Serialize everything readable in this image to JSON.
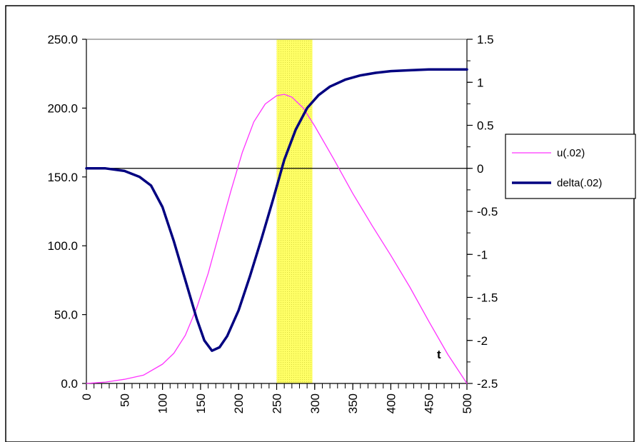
{
  "chart_data": {
    "type": "line",
    "title": "",
    "xlabel": "t",
    "xlim": [
      0,
      500
    ],
    "x_ticks": [
      "0",
      "50",
      "100",
      "150",
      "200",
      "250",
      "300",
      "350",
      "400",
      "450",
      "500"
    ],
    "x_minor_step": 10,
    "left_axis": {
      "ylim": [
        0,
        250
      ],
      "ticks": [
        0,
        50,
        100,
        150,
        200,
        250
      ],
      "tick_labels": [
        "0.0",
        "50.0",
        "100.0",
        "150.0",
        "200.0",
        "250.0"
      ]
    },
    "right_axis": {
      "ylim": [
        -2.5,
        1.5
      ],
      "ticks": [
        1.5,
        1,
        0.5,
        0,
        -0.5,
        -1,
        -1.5,
        -2,
        -2.5
      ],
      "tick_labels": [
        "1.5",
        "1",
        "0.5",
        "0",
        "-0.5",
        "-1",
        "-1.5",
        "-2",
        "-2.5"
      ],
      "minor_step": 0.25
    },
    "zero_line": 0,
    "highlight_band": {
      "x_from": 250,
      "x_to": 297,
      "color": "#ffff66"
    },
    "series": [
      {
        "name": "u(.02)",
        "axis": "left",
        "color": "#ff33ff",
        "width": 1.3,
        "points": [
          [
            0,
            0
          ],
          [
            25,
            1
          ],
          [
            50,
            3
          ],
          [
            75,
            6
          ],
          [
            100,
            14
          ],
          [
            115,
            22
          ],
          [
            130,
            35
          ],
          [
            145,
            55
          ],
          [
            160,
            80
          ],
          [
            175,
            110
          ],
          [
            190,
            140
          ],
          [
            205,
            168
          ],
          [
            220,
            190
          ],
          [
            235,
            203
          ],
          [
            250,
            209
          ],
          [
            260,
            210
          ],
          [
            270,
            208
          ],
          [
            285,
            200
          ],
          [
            300,
            187
          ],
          [
            325,
            163
          ],
          [
            350,
            138
          ],
          [
            375,
            115
          ],
          [
            400,
            93
          ],
          [
            425,
            70
          ],
          [
            450,
            45
          ],
          [
            475,
            21
          ],
          [
            500,
            0
          ]
        ]
      },
      {
        "name": "delta(.02)",
        "axis": "right",
        "color": "#000080",
        "width": 3.5,
        "points": [
          [
            0,
            0
          ],
          [
            25,
            0
          ],
          [
            50,
            -0.03
          ],
          [
            70,
            -0.1
          ],
          [
            85,
            -0.2
          ],
          [
            100,
            -0.45
          ],
          [
            115,
            -0.85
          ],
          [
            130,
            -1.3
          ],
          [
            145,
            -1.75
          ],
          [
            155,
            -2.0
          ],
          [
            165,
            -2.12
          ],
          [
            175,
            -2.08
          ],
          [
            185,
            -1.95
          ],
          [
            200,
            -1.65
          ],
          [
            215,
            -1.25
          ],
          [
            230,
            -0.82
          ],
          [
            245,
            -0.37
          ],
          [
            260,
            0.1
          ],
          [
            275,
            0.45
          ],
          [
            290,
            0.7
          ],
          [
            305,
            0.85
          ],
          [
            320,
            0.95
          ],
          [
            340,
            1.03
          ],
          [
            360,
            1.08
          ],
          [
            380,
            1.11
          ],
          [
            400,
            1.13
          ],
          [
            425,
            1.14
          ],
          [
            450,
            1.15
          ],
          [
            475,
            1.15
          ],
          [
            500,
            1.15
          ]
        ]
      }
    ],
    "legend": {
      "placement": "right",
      "entries": [
        "u(.02)",
        "delta(.02)"
      ]
    }
  }
}
